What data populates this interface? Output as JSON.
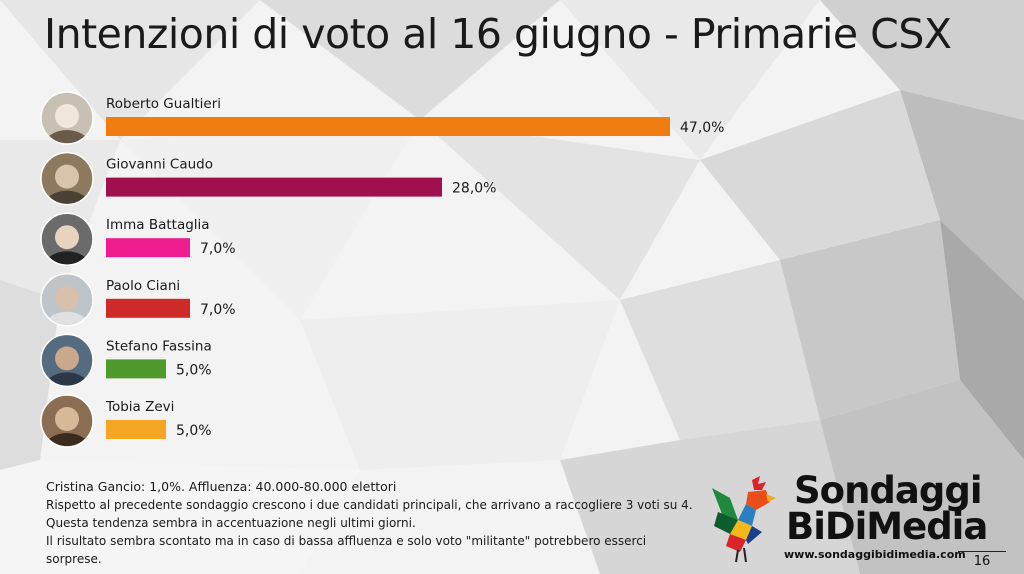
{
  "title": "Intenzioni di voto al 16 giugno - Primarie CSX",
  "chart_data": {
    "type": "bar",
    "orientation": "horizontal",
    "title": "Intenzioni di voto al 16 giugno - Primarie CSX",
    "categories": [
      "Roberto Gualtieri",
      "Giovanni Caudo",
      "Imma Battaglia",
      "Paolo Ciani",
      "Stefano Fassina",
      "Tobia Zevi"
    ],
    "values": [
      47.0,
      28.0,
      7.0,
      7.0,
      5.0,
      5.0
    ],
    "value_labels": [
      "47,0%",
      "28,0%",
      "7,0%",
      "7,0%",
      "5,0%",
      "5,0%"
    ],
    "colors": [
      "#ef7d10",
      "#a0104f",
      "#ee1c8e",
      "#cf2a2a",
      "#4e9a2c",
      "#f5a623"
    ],
    "xlim": [
      0,
      100
    ]
  },
  "notes": {
    "line1": "Cristina Gancio: 1,0%. Affluenza: 40.000-80.000 elettori",
    "line2": "Rispetto al precedente sondaggio crescono i due candidati principali, che arrivano a raccogliere 3 voti su 4.",
    "line3": "Questa tendenza sembra in accentuazione negli ultimi giorni.",
    "line4": "Il risultato sembra scontato ma in caso di bassa affluenza e solo voto \"militante\" potrebbero esserci",
    "line5": "sorprese."
  },
  "logo": {
    "line1": "Sondaggi",
    "line2": "BiDiMedia",
    "url": "www.sondaggibidimedia.com"
  },
  "page_number": "16"
}
